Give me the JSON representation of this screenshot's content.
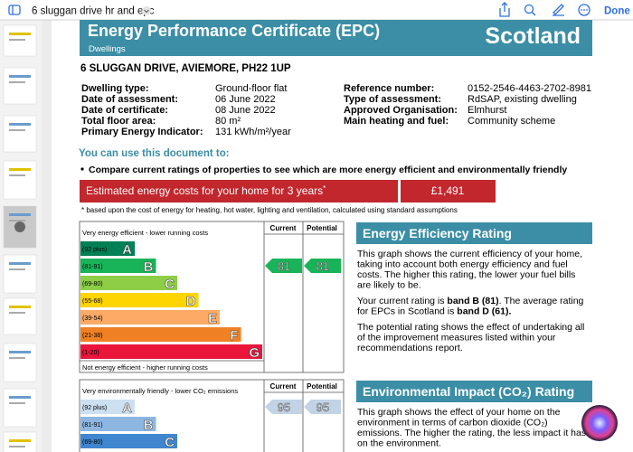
{
  "toolbar": {
    "title": "6 sluggan drive hr and epc",
    "done": "Done"
  },
  "header": {
    "title": "Energy Performance Certificate (EPC)",
    "subtitle": "Dwellings",
    "country": "Scotland"
  },
  "address": "6 SLUGGAN DRIVE, AVIEMORE, PH22 1UP",
  "details_left": [
    {
      "label": "Dwelling type:",
      "value": "Ground-floor flat"
    },
    {
      "label": "Date of assessment:",
      "value": "06 June 2022"
    },
    {
      "label": "Date of certificate:",
      "value": "08 June 2022"
    },
    {
      "label": "Total floor area:",
      "value": "80 m²"
    },
    {
      "label": "Primary Energy Indicator:",
      "value": "131 kWh/m²/year"
    }
  ],
  "details_right": [
    {
      "label": "Reference number:",
      "value": "0152-2546-4463-2702-8981"
    },
    {
      "label": "Type of assessment:",
      "value": "RdSAP, existing dwelling"
    },
    {
      "label": "Approved Organisation:",
      "value": "Elmhurst"
    },
    {
      "label": "Main heating and fuel:",
      "value": "Community scheme"
    }
  ],
  "uses": {
    "heading": "You can use this document to:",
    "bullet": "Compare current ratings of properties to see which are more energy efficient and environmentally friendly"
  },
  "costs": {
    "label": "Estimated energy costs for your home for 3 years",
    "asterisk": "*",
    "value": "£1,491",
    "note": "* based upon the cost of energy for heating, hot water, lighting and ventilation, calculated using standard assumptions"
  },
  "efficiency_chart": {
    "top": "Very energy efficient - lower running costs",
    "bottom": "Not energy efficient - higher running costs",
    "current_header": "Current",
    "potential_header": "Potential",
    "bands": [
      {
        "range": "(92 plus)",
        "letter": "A"
      },
      {
        "range": "(81-91)",
        "letter": "B"
      },
      {
        "range": "(69-80)",
        "letter": "C"
      },
      {
        "range": "(55-68)",
        "letter": "D"
      },
      {
        "range": "(39-54)",
        "letter": "E"
      },
      {
        "range": "(21-38)",
        "letter": "F"
      },
      {
        "range": "(1-20)",
        "letter": "G"
      }
    ],
    "current": 81,
    "potential": 81
  },
  "environment_chart": {
    "top": "Very environmentally friendly - lower CO₂ emissions",
    "current_header": "Current",
    "potential_header": "Potential",
    "bands": [
      {
        "range": "(92 plus)",
        "letter": "A"
      },
      {
        "range": "(81-91)",
        "letter": "B"
      },
      {
        "range": "(69-80)",
        "letter": "C"
      }
    ],
    "current": 95,
    "potential": 95
  },
  "efficiency_section": {
    "heading": "Energy Efficiency Rating",
    "paragraphs": [
      [
        [
          {
            "text": "This graph shows the current efficiency of your home,",
            "bold": false
          }
        ],
        [
          {
            "text": "taking into account both energy efficiency and fuel",
            "bold": false
          }
        ],
        [
          {
            "text": "costs. The higher this rating, the lower your fuel bills",
            "bold": false
          }
        ],
        [
          {
            "text": "are likely to be.",
            "bold": false
          }
        ]
      ],
      [
        [
          {
            "text": "Your current rating is ",
            "bold": false
          },
          {
            "text": "band B (81)",
            "bold": true
          },
          {
            "text": ". The average rating",
            "bold": false
          }
        ],
        [
          {
            "text": "for EPCs in Scotland is ",
            "bold": false
          },
          {
            "text": "band D (61).",
            "bold": true
          }
        ]
      ],
      [
        [
          {
            "text": "The potential rating shows the effect of undertaking all",
            "bold": false
          }
        ],
        [
          {
            "text": "of the improvement measures listed within your",
            "bold": false
          }
        ],
        [
          {
            "text": "recommendations report.",
            "bold": false
          }
        ]
      ]
    ]
  },
  "environment_section": {
    "heading": "Environmental Impact (CO₂) Rating",
    "paragraphs": [
      [
        [
          {
            "text": "This graph shows the effect of your home on the",
            "bold": false
          }
        ],
        [
          {
            "text": "environment in terms of carbon dioxide (CO₂)",
            "bold": false
          }
        ],
        [
          {
            "text": "emissions. The higher the rating, the less impact it has",
            "bold": false
          }
        ],
        [
          {
            "text": "on the environment.",
            "bold": false
          }
        ]
      ]
    ]
  }
}
